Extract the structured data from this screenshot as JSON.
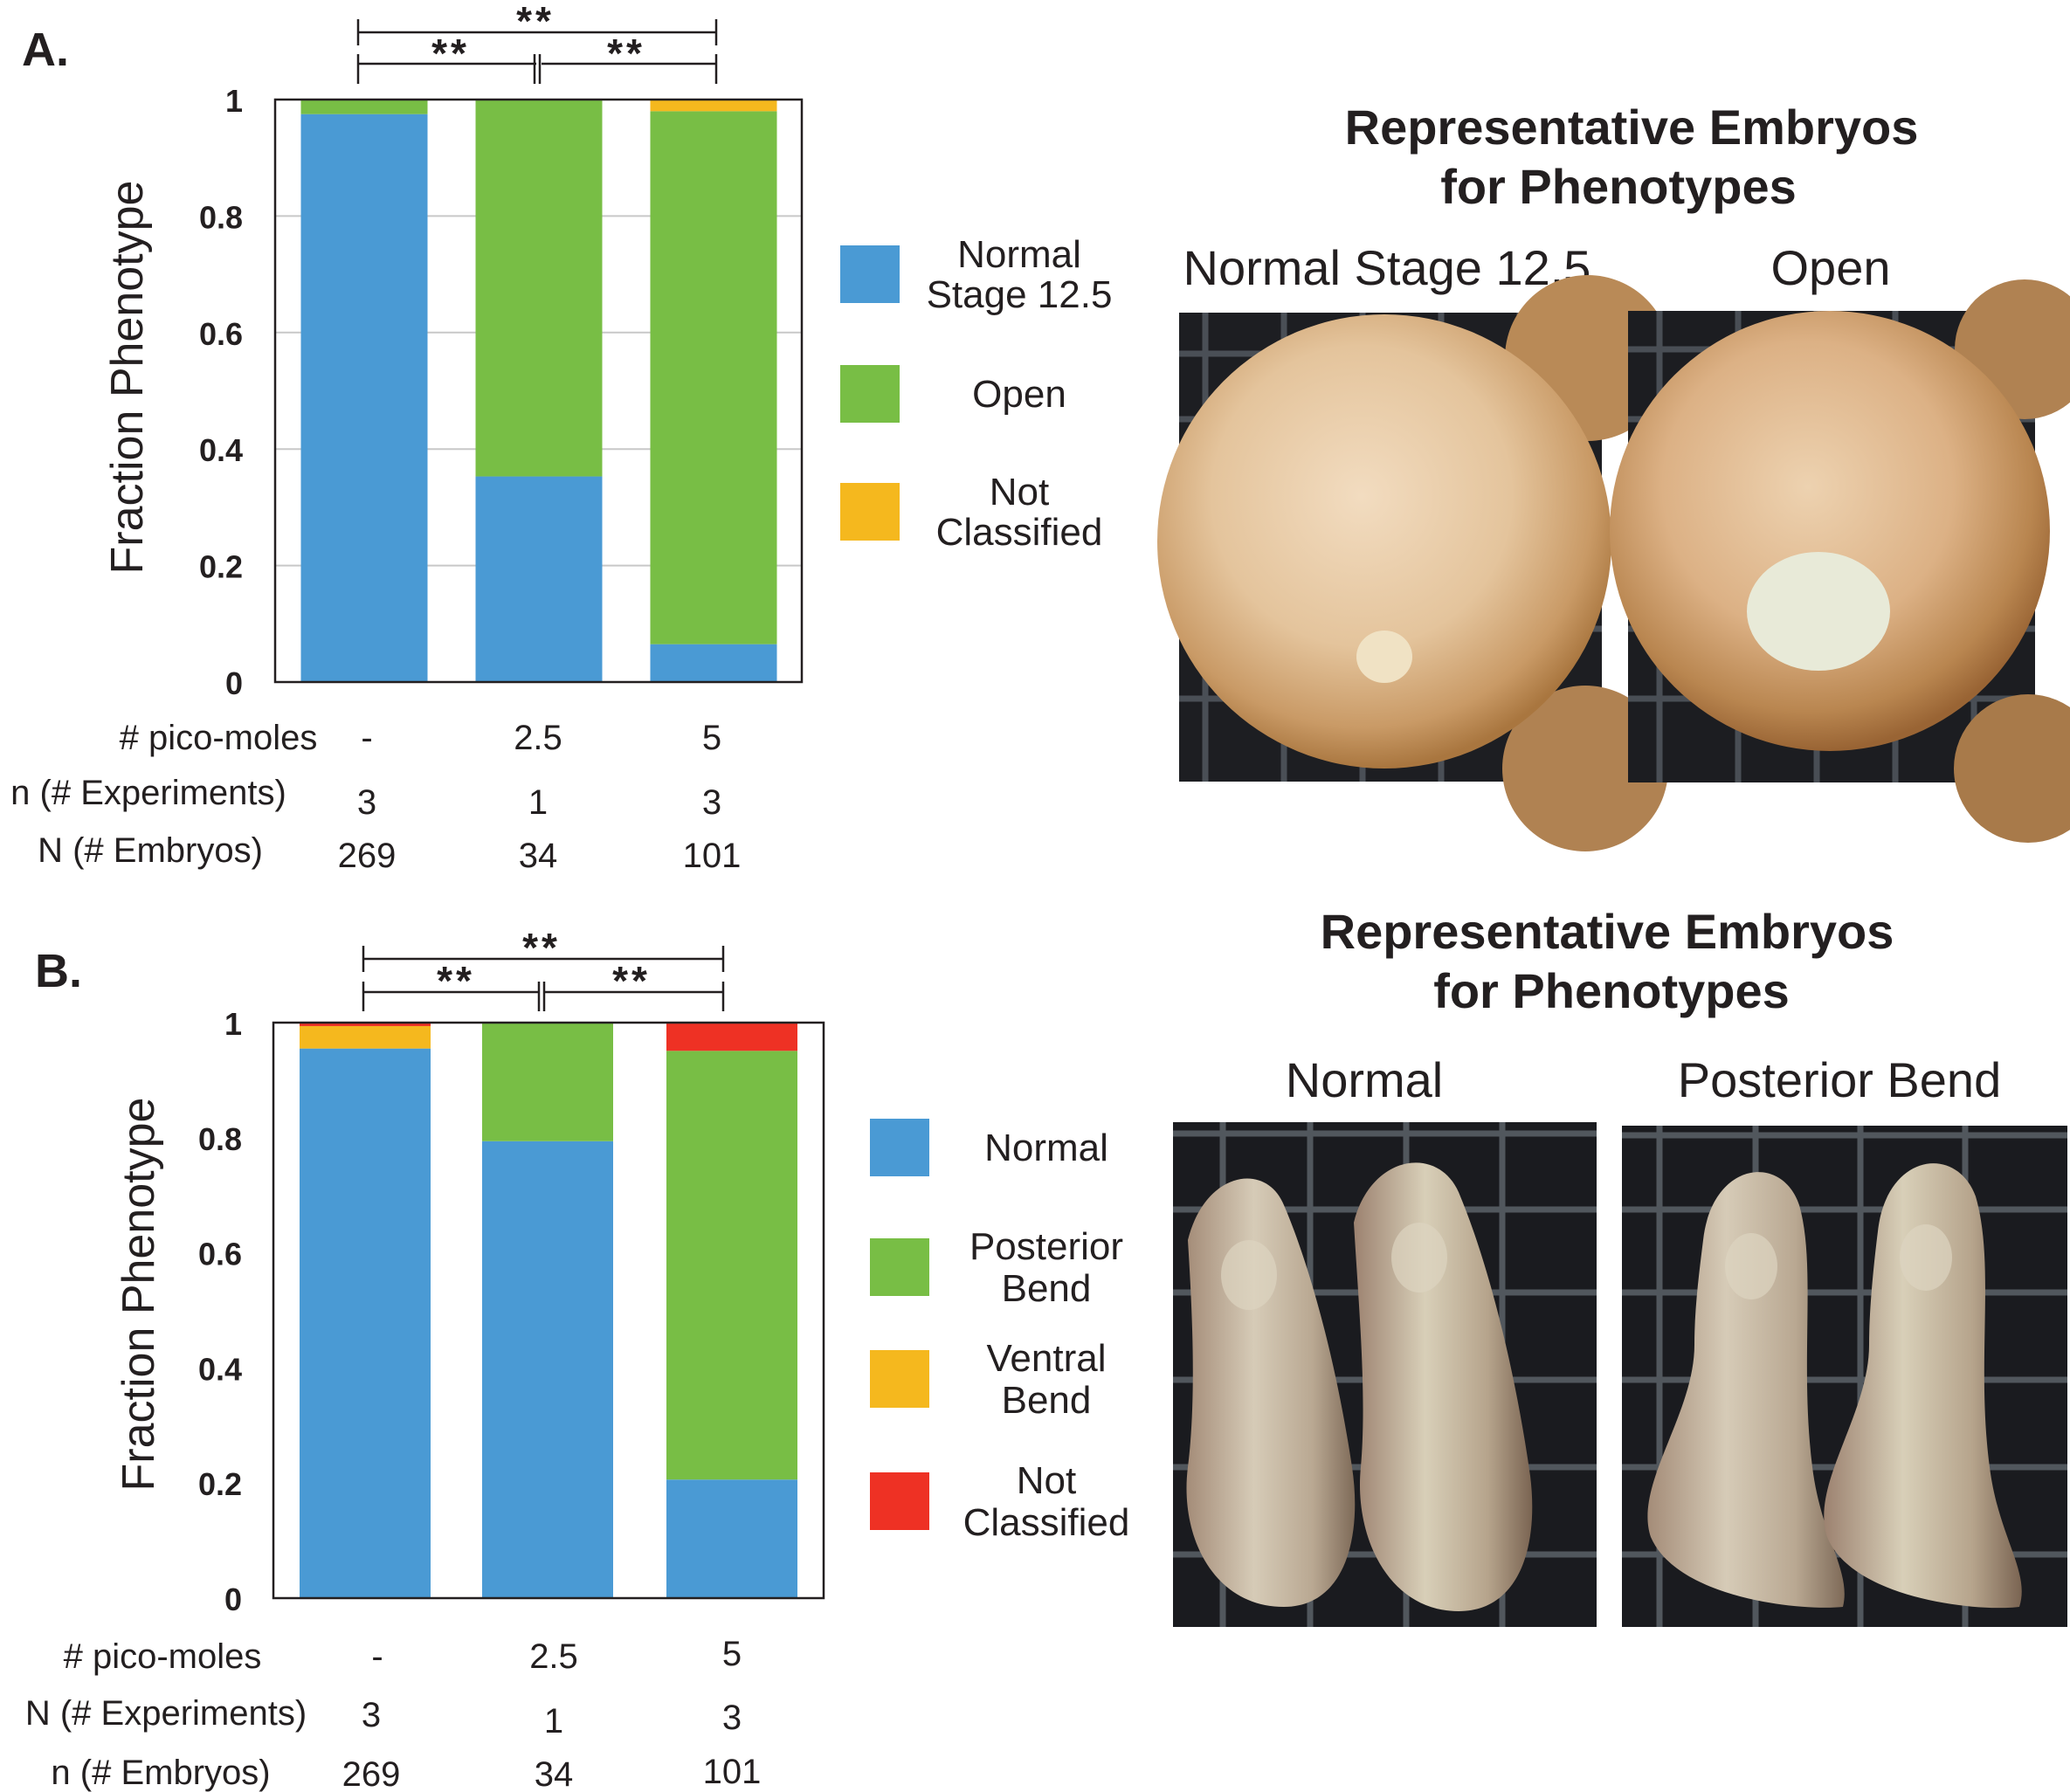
{
  "panels": [
    {
      "id": "A",
      "letter": "A.",
      "ylabel": "Fraction Phenotype",
      "heading": [
        "Representative Embryos",
        "for Phenotypes"
      ],
      "photo_captions": [
        "Normal Stage 12.5",
        "Open"
      ],
      "significance": {
        "outer": "**",
        "left": "**",
        "right": "**"
      },
      "table_rows": [
        {
          "label": "# pico-moles",
          "values": [
            "-",
            "2.5",
            "5"
          ]
        },
        {
          "label": "n (# Experiments)",
          "values": [
            "3",
            "1",
            "3"
          ]
        },
        {
          "label": "N (# Embryos)",
          "values": [
            "269",
            "34",
            "101"
          ]
        }
      ]
    },
    {
      "id": "B",
      "letter": "B.",
      "ylabel": "Fraction Phenotype",
      "heading": [
        "Representative Embryos",
        "for Phenotypes"
      ],
      "photo_captions": [
        "Normal",
        "Posterior Bend"
      ],
      "significance": {
        "outer": "**",
        "left": "**",
        "right": "**"
      },
      "table_rows": [
        {
          "label": "# pico-moles",
          "values": [
            "-",
            "2.5",
            "5"
          ]
        },
        {
          "label": "N (# Experiments)",
          "values": [
            "3",
            "1",
            "3"
          ]
        },
        {
          "label": "n (# Embryos)",
          "values": [
            "269",
            "34",
            "101"
          ]
        }
      ]
    }
  ],
  "chart_data": [
    {
      "type": "bar",
      "stacked": true,
      "categories": [
        "-",
        "2.5",
        "5"
      ],
      "ylabel": "Fraction Phenotype",
      "ylim": [
        0,
        1
      ],
      "yticks": [
        "0",
        "0.2",
        "0.4",
        "0.6",
        "0.8",
        "1"
      ],
      "grid": true,
      "legend_position": "right",
      "series": [
        {
          "name": "Normal Stage 12.5",
          "legend_lines": [
            "Normal",
            "Stage 12.5"
          ],
          "color": "#4a9ad4",
          "values": [
            0.975,
            0.353,
            0.065
          ]
        },
        {
          "name": "Open",
          "legend_lines": [
            "Open"
          ],
          "color": "#78be45",
          "values": [
            0.025,
            0.647,
            0.915
          ]
        },
        {
          "name": "Not Classified",
          "legend_lines": [
            "Not",
            "Classified"
          ],
          "color": "#f5b81e",
          "values": [
            0.0,
            0.0,
            0.02
          ]
        }
      ]
    },
    {
      "type": "bar",
      "stacked": true,
      "categories": [
        "-",
        "2.5",
        "5"
      ],
      "ylabel": "Fraction Phenotype",
      "ylim": [
        0,
        1
      ],
      "yticks": [
        "0",
        "0.2",
        "0.4",
        "0.6",
        "0.8",
        "1"
      ],
      "grid": false,
      "legend_position": "right",
      "series": [
        {
          "name": "Normal",
          "legend_lines": [
            "Normal"
          ],
          "color": "#4a9ad4",
          "values": [
            0.955,
            0.794,
            0.206
          ]
        },
        {
          "name": "Posterior Bend",
          "legend_lines": [
            "Posterior",
            "Bend"
          ],
          "color": "#78be45",
          "values": [
            0.0,
            0.206,
            0.745
          ]
        },
        {
          "name": "Ventral Bend",
          "legend_lines": [
            "Ventral",
            "Bend"
          ],
          "color": "#f5b81e",
          "values": [
            0.039,
            0.0,
            0.0
          ]
        },
        {
          "name": "Not Classified",
          "legend_lines": [
            "Not",
            "Classified"
          ],
          "color": "#ee3124",
          "values": [
            0.006,
            0.0,
            0.049
          ]
        }
      ]
    }
  ]
}
